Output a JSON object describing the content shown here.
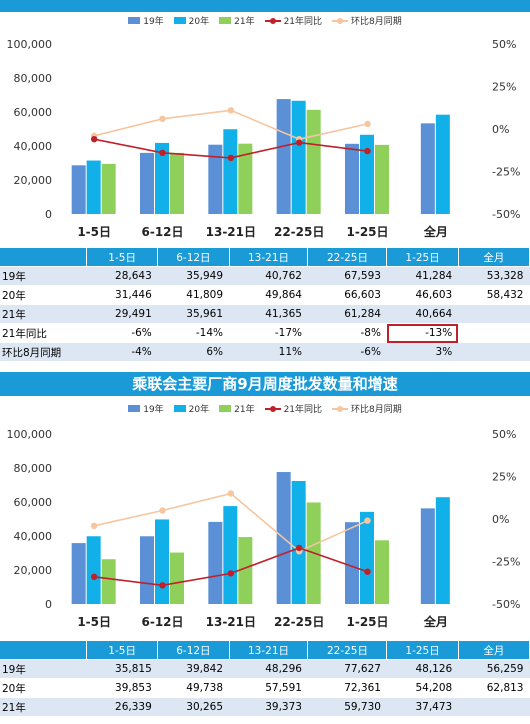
{
  "top_title": "",
  "bottom_title": "乘联会主要厂商9月周度批发数量和增速",
  "legend": [
    {
      "label": "19年",
      "color": "#5b8fd6",
      "kind": "bar"
    },
    {
      "label": "20年",
      "color": "#12b0e8",
      "kind": "bar"
    },
    {
      "label": "21年",
      "color": "#8fd05a",
      "kind": "bar"
    },
    {
      "label": "21年同比",
      "color": "#c0202a",
      "kind": "line"
    },
    {
      "label": "环比8月同期",
      "color": "#f5c6a0",
      "kind": "line"
    }
  ],
  "table_headers": [
    "",
    "1-5日",
    "6-12日",
    "13-21日",
    "22-25日",
    "1-25日",
    "全月"
  ],
  "chart_data": [
    {
      "type": "bar",
      "title": "",
      "categories": [
        "1-5日",
        "6-12日",
        "13-21日",
        "22-25日",
        "1-25日",
        "全月"
      ],
      "left_axis": {
        "ylim": [
          0,
          100000
        ],
        "ticks": [
          "0",
          "20,000",
          "40,000",
          "60,000",
          "80,000",
          "100,000"
        ]
      },
      "right_axis": {
        "ylim": [
          -50,
          50
        ],
        "ticks": [
          "-50%",
          "-25%",
          "0%",
          "25%",
          "50%"
        ]
      },
      "series": [
        {
          "name": "19年",
          "kind": "bar",
          "values": [
            28643,
            35949,
            40762,
            67593,
            41284,
            53328
          ]
        },
        {
          "name": "20年",
          "kind": "bar",
          "values": [
            31446,
            41809,
            49864,
            66603,
            46603,
            58432
          ]
        },
        {
          "name": "21年",
          "kind": "bar",
          "values": [
            29491,
            35961,
            41365,
            61284,
            40664,
            null
          ]
        },
        {
          "name": "21年同比",
          "kind": "line",
          "axis": "right",
          "values": [
            -6,
            -14,
            -17,
            -8,
            -13,
            null
          ]
        },
        {
          "name": "环比8月同期",
          "kind": "line",
          "axis": "right",
          "values": [
            -4,
            6,
            11,
            -6,
            3,
            null
          ]
        }
      ]
    },
    {
      "type": "bar",
      "title": "乘联会主要厂商9月周度批发数量和增速",
      "categories": [
        "1-5日",
        "6-12日",
        "13-21日",
        "22-25日",
        "1-25日",
        "全月"
      ],
      "left_axis": {
        "ylim": [
          0,
          100000
        ],
        "ticks": [
          "0",
          "20,000",
          "40,000",
          "60,000",
          "80,000",
          "100,000"
        ]
      },
      "right_axis": {
        "ylim": [
          -50,
          50
        ],
        "ticks": [
          "-50%",
          "-25%",
          "0%",
          "25%",
          "50%"
        ]
      },
      "series": [
        {
          "name": "19年",
          "kind": "bar",
          "values": [
            35815,
            39842,
            48296,
            77627,
            48126,
            56259
          ]
        },
        {
          "name": "20年",
          "kind": "bar",
          "values": [
            39853,
            49738,
            57591,
            72361,
            54208,
            62813
          ]
        },
        {
          "name": "21年",
          "kind": "bar",
          "values": [
            26339,
            30265,
            39373,
            59730,
            37473,
            null
          ]
        },
        {
          "name": "21年同比",
          "kind": "line",
          "axis": "right",
          "values": [
            -34,
            -39,
            -32,
            -17,
            -31,
            null
          ]
        },
        {
          "name": "环比8月同期",
          "kind": "line",
          "axis": "right",
          "values": [
            -4,
            5,
            15,
            -19,
            -1,
            null
          ]
        }
      ]
    }
  ],
  "top_table": {
    "rows": [
      {
        "label": "19年",
        "cells": [
          "28,643",
          "35,949",
          "40,762",
          "67,593",
          "41,284",
          "53,328"
        ]
      },
      {
        "label": "20年",
        "cells": [
          "31,446",
          "41,809",
          "49,864",
          "66,603",
          "46,603",
          "58,432"
        ]
      },
      {
        "label": "21年",
        "cells": [
          "29,491",
          "35,961",
          "41,365",
          "61,284",
          "40,664",
          ""
        ]
      },
      {
        "label": "21年同比",
        "cells": [
          "-6%",
          "-14%",
          "-17%",
          "-8%",
          "-13%",
          ""
        ]
      },
      {
        "label": "环比8月同期",
        "cells": [
          "-4%",
          "6%",
          "11%",
          "-6%",
          "3%",
          ""
        ]
      }
    ]
  },
  "bottom_table": {
    "rows": [
      {
        "label": "19年",
        "cells": [
          "35,815",
          "39,842",
          "48,296",
          "77,627",
          "48,126",
          "56,259"
        ]
      },
      {
        "label": "20年",
        "cells": [
          "39,853",
          "49,738",
          "57,591",
          "72,361",
          "54,208",
          "62,813"
        ]
      },
      {
        "label": "21年",
        "cells": [
          "26,339",
          "30,265",
          "39,373",
          "59,730",
          "37,473",
          ""
        ]
      }
    ]
  }
}
